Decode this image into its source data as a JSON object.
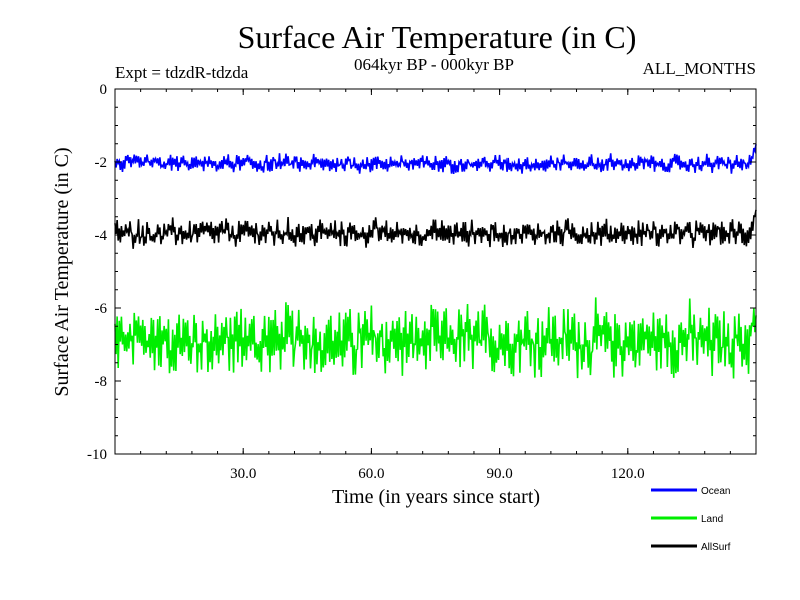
{
  "chart_data": {
    "type": "line",
    "title": "Surface Air Temperature (in C)",
    "subtitle": "064kyr BP - 000kyr BP",
    "experiment": "Expt = tdzdR-tdzda",
    "months": "ALL_MONTHS",
    "xlabel": "Time (in years since start)",
    "ylabel": "Surface Air Temperature (in C)",
    "xlim": [
      0,
      150
    ],
    "ylim": [
      -10,
      0
    ],
    "x_ticks": [
      30,
      60,
      90,
      120
    ],
    "x_tick_labels": [
      "30.0",
      "60.0",
      "90.0",
      "120.0"
    ],
    "y_ticks": [
      0,
      -2,
      -4,
      -6,
      -8,
      -10
    ],
    "y_tick_labels": [
      "0",
      "-2",
      "-4",
      "-6",
      "-8",
      "-10"
    ],
    "n_points": 600,
    "series": [
      {
        "name": "Ocean",
        "color": "#0000ff",
        "mean": -2.05,
        "amplitude": 0.22,
        "end_value": -1.3
      },
      {
        "name": "Land",
        "color": "#00ee00",
        "mean": -6.9,
        "amplitude": 0.85,
        "end_value": -5.9
      },
      {
        "name": "AllSurf",
        "color": "#000000",
        "mean": -3.95,
        "amplitude": 0.33,
        "end_value": -3.0
      }
    ],
    "legend_position": "bottom-right"
  }
}
